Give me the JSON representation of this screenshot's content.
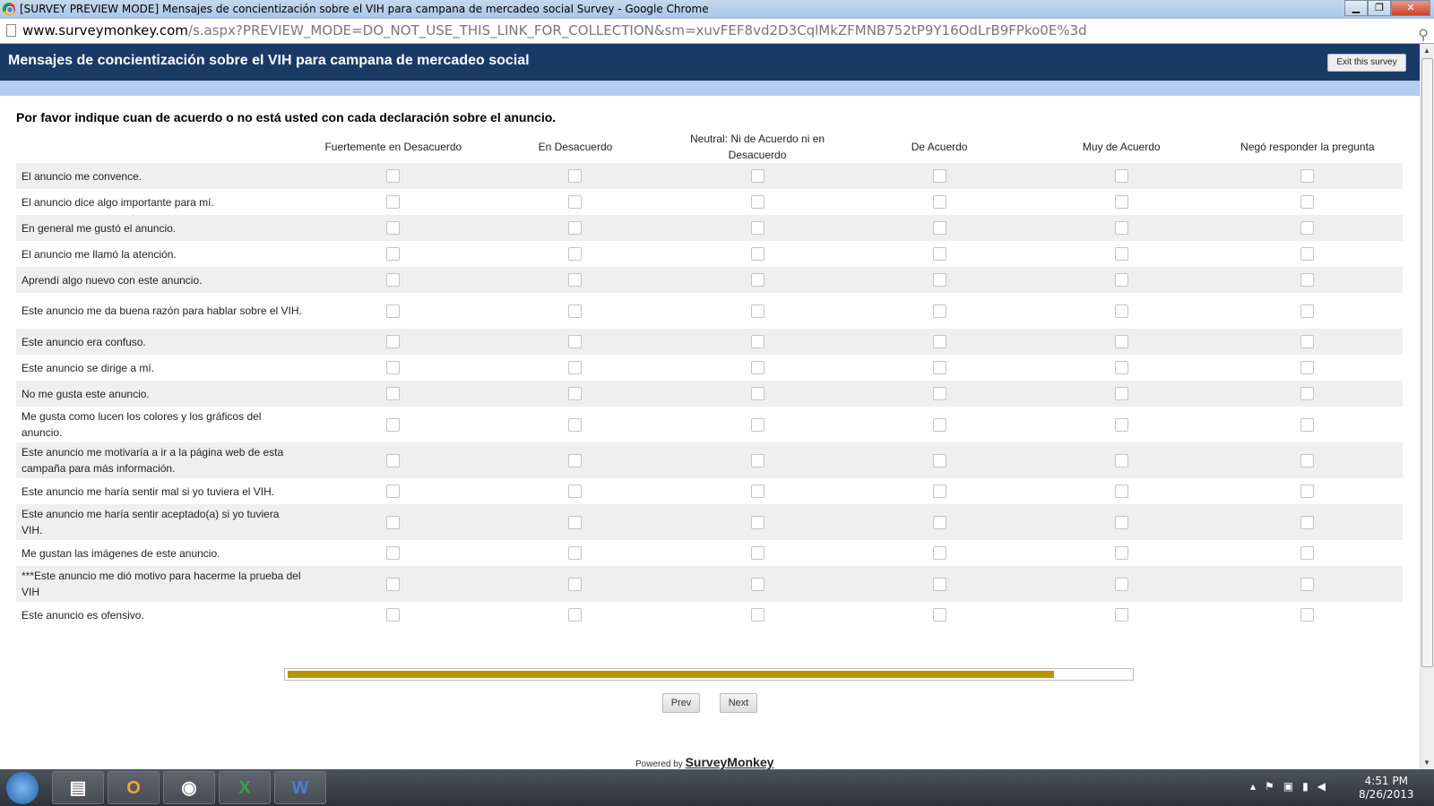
{
  "window": {
    "title": "[SURVEY PREVIEW MODE] Mensajes de concientización sobre el VIH para campana de mercadeo social Survey - Google Chrome",
    "url_host": "www.surveymonkey.com",
    "url_path": "/s.aspx?PREVIEW_MODE=DO_NOT_USE_THIS_LINK_FOR_COLLECTION&sm=xuvFEF8vd2D3CqlMkZFMNB752tP9Y16OdLrB9FPko0E%3d"
  },
  "survey": {
    "title": "Mensajes de concientización sobre el VIH para campana de mercadeo social",
    "exit_label": "Exit this survey",
    "question": "Por favor indique cuan de acuerdo o no está usted con cada declaración sobre el anuncio.",
    "columns": [
      "Fuertemente en Desacuerdo",
      "En Desacuerdo",
      "Neutral: Ni de Acuerdo ni en Desacuerdo",
      "De Acuerdo",
      "Muy de Acuerdo",
      "Negó responder la pregunta"
    ],
    "rows": [
      "El anuncio me convence.",
      "El anuncio dice algo importante para mí.",
      "En general me gustó el anuncio.",
      "El anuncio me llamó la atención.",
      "Aprendí algo nuevo con este anuncio.",
      "Este anuncio me da buena razón para hablar sobre el VIH.",
      "Este anuncio era confuso.",
      "Este anuncio se dirige a mí.",
      "No me gusta este anuncio.",
      "Me gusta como lucen los colores y los gráficos del anuncio.",
      "Este anuncio me motivaría a ir a la página web de esta campaña para más información.",
      "Este anuncio me haría sentir mal si yo tuviera el VIH.",
      "Este anuncio me haría sentir aceptado(a) si yo tuviera VIH.",
      "Me gustan las imágenes de este anuncio.",
      "***Este anuncio me dió motivo para hacerme la prueba del VIH",
      "Este anuncio es ofensivo."
    ],
    "progress_percent": 91,
    "progress_color": "#b59500",
    "prev_label": "Prev",
    "next_label": "Next",
    "powered_by": "Powered by",
    "brand": "SurveyMonkey"
  },
  "taskbar": {
    "apps": [
      "file-explorer-icon",
      "outlook-icon",
      "chrome-icon",
      "excel-icon",
      "word-icon"
    ],
    "time": "4:51 PM",
    "date": "8/26/2013"
  }
}
